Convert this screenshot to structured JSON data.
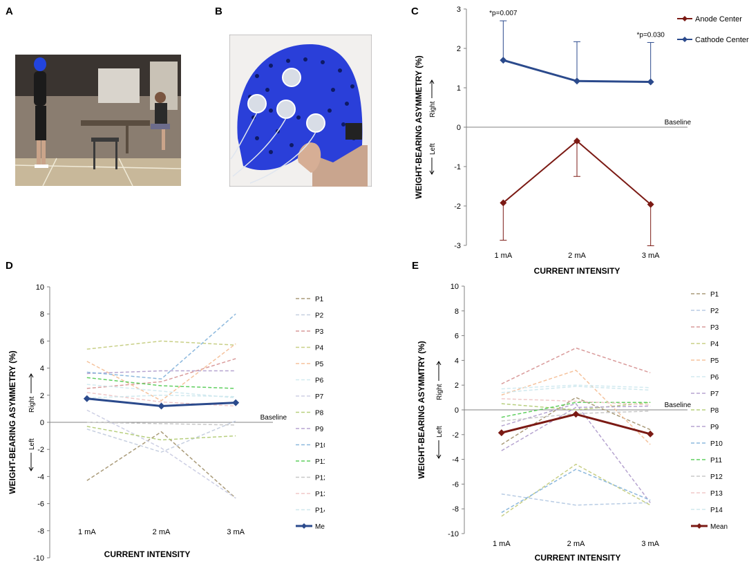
{
  "panels": {
    "A": {
      "letter": "A"
    },
    "B": {
      "letter": "B"
    },
    "C": {
      "letter": "C"
    },
    "D": {
      "letter": "D"
    },
    "E": {
      "letter": "E"
    }
  },
  "colors": {
    "anode": "#7b1a14",
    "cathode": "#2b4a8c",
    "axis": "#808080",
    "cap_blue": "#2244dd"
  },
  "chart_data": [
    {
      "id": "C",
      "type": "line",
      "xlabel": "CURRENT INTENSITY",
      "ylabel": "WEIGHT-BEARING ASYMMETRY (%)",
      "categories": [
        "1 mA",
        "2 mA",
        "3 mA"
      ],
      "ylim": [
        -3,
        3
      ],
      "yticks": [
        3,
        2,
        1,
        0,
        -1,
        -2,
        -3
      ],
      "baseline_label": "Baseline",
      "right_label": "Right",
      "left_label": "Left",
      "annotations": [
        {
          "text": "*p=0.007",
          "category": "1 mA",
          "series": "Cathode Center"
        },
        {
          "text": "*p=0.030",
          "category": "3 mA",
          "series": "Cathode Center"
        }
      ],
      "series": [
        {
          "name": "Anode Center",
          "values": [
            -1.92,
            -0.35,
            -1.96
          ],
          "error_down": [
            0.95,
            0.9,
            1.05
          ],
          "color": "#7b1a14"
        },
        {
          "name": "Cathode Center",
          "values": [
            1.7,
            1.17,
            1.15
          ],
          "error_up": [
            1.0,
            1.0,
            1.0
          ],
          "color": "#2b4a8c"
        }
      ],
      "legend": [
        {
          "name": "Anode Center",
          "color": "#7b1a14"
        },
        {
          "name": "Cathode Center",
          "color": "#2b4a8c"
        }
      ]
    },
    {
      "id": "D",
      "type": "line",
      "xlabel": "CURRENT INTENSITY",
      "ylabel": "WEIGHT-BEARING ASYMMETRY (%)",
      "categories": [
        "1 mA",
        "2 mA",
        "3 mA"
      ],
      "ylim": [
        -10,
        10
      ],
      "yticks": [
        10,
        8,
        6,
        4,
        2,
        0,
        -2,
        -4,
        -6,
        -8,
        -10
      ],
      "baseline_label": "Baseline",
      "right_label": "Right",
      "left_label": "Left",
      "series": [
        {
          "name": "P1",
          "values": [
            -4.3,
            -0.7,
            -5.6
          ],
          "color": "#a99a78"
        },
        {
          "name": "P2",
          "values": [
            -0.5,
            -2.2,
            0.1
          ],
          "color": "#c6cfe0"
        },
        {
          "name": "P3",
          "values": [
            2.5,
            3.0,
            4.7
          ],
          "color": "#d99a9a"
        },
        {
          "name": "P4",
          "values": [
            5.4,
            6.0,
            5.7
          ],
          "color": "#c8cf86"
        },
        {
          "name": "P5",
          "values": [
            4.5,
            1.6,
            5.8
          ],
          "color": "#f5c29c"
        },
        {
          "name": "P6",
          "values": [
            2.8,
            2.3,
            1.8
          ],
          "color": "#d2eaf0"
        },
        {
          "name": "P7",
          "values": [
            0.9,
            -1.9,
            -5.6
          ],
          "color": "#cdcfe4"
        },
        {
          "name": "P8",
          "values": [
            -0.3,
            -1.3,
            -1.0
          ],
          "color": "#b7cf7e"
        },
        {
          "name": "P9",
          "values": [
            3.6,
            3.8,
            3.8
          ],
          "color": "#b6a4d0"
        },
        {
          "name": "P10",
          "values": [
            3.7,
            3.2,
            8.0
          ],
          "color": "#8cb8dd"
        },
        {
          "name": "P11",
          "values": [
            3.3,
            2.7,
            2.5
          ],
          "color": "#5fcf5f"
        },
        {
          "name": "P12",
          "values": [
            0.0,
            -0.1,
            -0.2
          ],
          "color": "#c8c8c8"
        },
        {
          "name": "P13",
          "values": [
            2.2,
            1.5,
            1.2
          ],
          "color": "#f0c8c8"
        },
        {
          "name": "P14",
          "values": [
            1.8,
            2.0,
            1.9
          ],
          "color": "#cfe8ee"
        },
        {
          "name": "Mean",
          "values": [
            1.75,
            1.2,
            1.45
          ],
          "color": "#2b4a8c",
          "solid": true
        }
      ]
    },
    {
      "id": "E",
      "type": "line",
      "xlabel": "CURRENT INTENSITY",
      "ylabel": "WEIGHT-BEARING ASYMMTRY (%)",
      "categories": [
        "1 mA",
        "2 mA",
        "3 mA"
      ],
      "ylim": [
        -10,
        10
      ],
      "yticks": [
        10,
        8,
        6,
        4,
        2,
        0,
        -2,
        -4,
        -6,
        -8,
        -10
      ],
      "baseline_label": "Baseline",
      "right_label": "Right",
      "left_label": "Left",
      "series": [
        {
          "name": "P1",
          "values": [
            -2.8,
            1.0,
            -1.6
          ],
          "color": "#a99a78"
        },
        {
          "name": "P2",
          "values": [
            -6.8,
            -7.7,
            -7.5
          ],
          "color": "#b8cce4"
        },
        {
          "name": "P3",
          "values": [
            2.1,
            5.0,
            3.0
          ],
          "color": "#d99a9a"
        },
        {
          "name": "P4",
          "values": [
            -8.6,
            -4.4,
            -7.7
          ],
          "color": "#c8cf86"
        },
        {
          "name": "P5",
          "values": [
            1.2,
            3.2,
            -2.8
          ],
          "color": "#f5c29c"
        },
        {
          "name": "P6",
          "values": [
            1.7,
            2.0,
            1.8
          ],
          "color": "#d2eaf0"
        },
        {
          "name": "P7",
          "values": [
            -1.3,
            0.5,
            -7.5
          ],
          "color": "#b6a4d0"
        },
        {
          "name": "P8",
          "values": [
            0.5,
            0.0,
            0.6
          ],
          "color": "#b7cf7e"
        },
        {
          "name": "P9",
          "values": [
            -3.3,
            0.2,
            0.3
          ],
          "color": "#b6a4d0"
        },
        {
          "name": "P10",
          "values": [
            -8.3,
            -4.8,
            -7.3
          ],
          "color": "#8cb8dd"
        },
        {
          "name": "P11",
          "values": [
            -0.6,
            0.6,
            0.6
          ],
          "color": "#5fcf5f"
        },
        {
          "name": "P12",
          "values": [
            -0.9,
            -0.3,
            -0.1
          ],
          "color": "#c8c8c8"
        },
        {
          "name": "P13",
          "values": [
            0.9,
            0.7,
            0.4
          ],
          "color": "#f0c8c8"
        },
        {
          "name": "P14",
          "values": [
            1.4,
            1.9,
            1.6
          ],
          "color": "#cfe8ee"
        },
        {
          "name": "Mean",
          "values": [
            -1.85,
            -0.35,
            -1.95
          ],
          "color": "#7b1a14",
          "solid": true
        }
      ]
    }
  ]
}
